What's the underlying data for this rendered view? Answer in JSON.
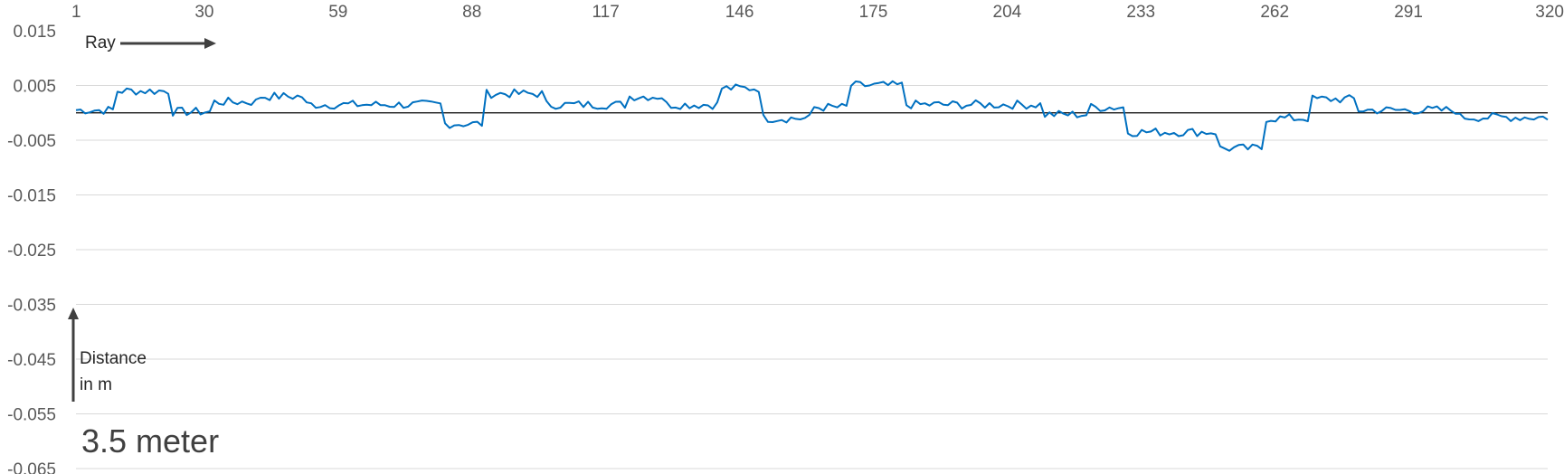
{
  "chart_data": {
    "type": "line",
    "title": "",
    "xlabel": "",
    "ylabel": "",
    "x_range": [
      1,
      320
    ],
    "x_ticks": [
      1,
      30,
      59,
      88,
      117,
      146,
      175,
      204,
      233,
      262,
      291,
      320
    ],
    "x_axis_position": "top",
    "ylim": [
      -0.065,
      0.015
    ],
    "y_ticks": [
      0.015,
      0.005,
      -0.005,
      -0.015,
      -0.025,
      -0.035,
      -0.045,
      -0.055,
      -0.065
    ],
    "grid": true,
    "zero_line": true,
    "series_color": "#0070c0",
    "annotations": {
      "ray_label": "Ray",
      "distance_label_line1": "Distance",
      "distance_label_line2": "in m",
      "big_label": "3.5 meter"
    },
    "segments": [
      {
        "x_from": 1,
        "x_to": 9,
        "level": 0.0005
      },
      {
        "x_from": 10,
        "x_to": 21,
        "level": 0.004
      },
      {
        "x_from": 22,
        "x_to": 30,
        "level": 0.0002
      },
      {
        "x_from": 31,
        "x_to": 40,
        "level": 0.002
      },
      {
        "x_from": 41,
        "x_to": 50,
        "level": 0.003
      },
      {
        "x_from": 51,
        "x_to": 80,
        "level": 0.0015
      },
      {
        "x_from": 81,
        "x_to": 89,
        "level": -0.002
      },
      {
        "x_from": 90,
        "x_to": 102,
        "level": 0.0035
      },
      {
        "x_from": 103,
        "x_to": 120,
        "level": 0.0015
      },
      {
        "x_from": 121,
        "x_to": 128,
        "level": 0.003
      },
      {
        "x_from": 129,
        "x_to": 140,
        "level": 0.0015
      },
      {
        "x_from": 141,
        "x_to": 149,
        "level": 0.0045
      },
      {
        "x_from": 150,
        "x_to": 160,
        "level": -0.001
      },
      {
        "x_from": 161,
        "x_to": 168,
        "level": 0.001
      },
      {
        "x_from": 169,
        "x_to": 180,
        "level": 0.005
      },
      {
        "x_from": 181,
        "x_to": 210,
        "level": 0.0015
      },
      {
        "x_from": 211,
        "x_to": 220,
        "level": -0.0003
      },
      {
        "x_from": 221,
        "x_to": 228,
        "level": 0.001
      },
      {
        "x_from": 229,
        "x_to": 248,
        "level": -0.0035
      },
      {
        "x_from": 249,
        "x_to": 258,
        "level": -0.0065
      },
      {
        "x_from": 259,
        "x_to": 268,
        "level": -0.001
      },
      {
        "x_from": 269,
        "x_to": 278,
        "level": 0.0025
      },
      {
        "x_from": 279,
        "x_to": 300,
        "level": 0.0005
      },
      {
        "x_from": 301,
        "x_to": 320,
        "level": -0.0008
      }
    ]
  }
}
